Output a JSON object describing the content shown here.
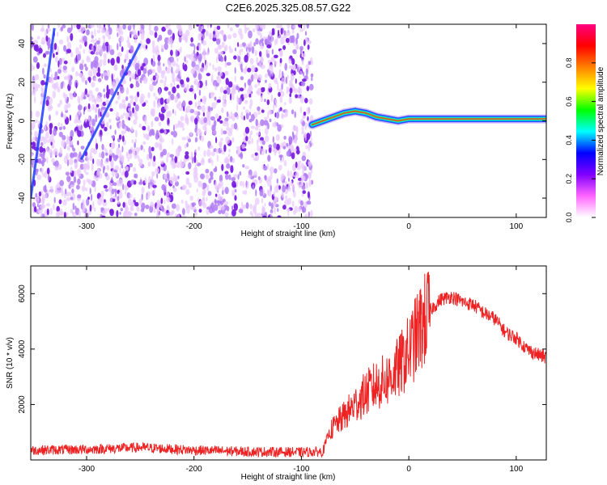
{
  "figure_title": "C2E6.2025.325.08.57.G22",
  "chart_data": [
    {
      "type": "heatmap",
      "title": "C2E6.2025.325.08.57.G22",
      "xlabel": "Height of straight line (km)",
      "ylabel": "Frequency (Hz)",
      "xlim": [
        -352,
        128
      ],
      "ylim": [
        -50,
        50
      ],
      "xticks": [
        -300,
        -200,
        -100,
        0,
        100
      ],
      "yticks": [
        -40,
        -20,
        0,
        20,
        40
      ],
      "colorbar": {
        "label": "Normalized spectral amplitude",
        "range": [
          0,
          1
        ],
        "ticks": [
          0.0,
          0.2,
          0.4,
          0.6,
          0.8
        ],
        "tick_labels": [
          "0.0",
          "0.2",
          "0.4",
          "0.6",
          "0.8"
        ],
        "colormap": [
          "#ffffff",
          "#ff66ff",
          "#8000ff",
          "#0000ff",
          "#00ffff",
          "#00ff00",
          "#ffff00",
          "#ff8000",
          "#ff0000",
          "#ff0080"
        ]
      },
      "noise_region": {
        "x_range": [
          -352,
          -90
        ],
        "y_range": [
          -50,
          50
        ]
      },
      "signal_trace": {
        "x": [
          -90,
          -80,
          -70,
          -60,
          -50,
          -40,
          -30,
          -20,
          -10,
          0,
          20,
          40,
          60,
          80,
          100,
          128
        ],
        "y": [
          -2,
          0,
          2,
          4,
          5,
          4,
          2,
          1,
          0,
          1,
          1,
          1,
          1,
          1,
          1,
          1
        ]
      },
      "diagonal_streaks": [
        {
          "x": [
            -352,
            -330
          ],
          "y": [
            -40,
            48
          ]
        },
        {
          "x": [
            -305,
            -250
          ],
          "y": [
            -20,
            40
          ]
        }
      ]
    },
    {
      "type": "line",
      "xlabel": "Height of straight line (km)",
      "ylabel": "SNR (10 * v/v)",
      "xlim": [
        -352,
        128
      ],
      "ylim": [
        0,
        7000
      ],
      "xticks": [
        -300,
        -200,
        -100,
        0,
        100
      ],
      "yticks": [
        2000,
        4000,
        6000
      ],
      "color": "#ee2222",
      "series": [
        {
          "name": "SNR",
          "x": [
            -352,
            -300,
            -250,
            -200,
            -150,
            -100,
            -80,
            -75,
            -70,
            -60,
            -50,
            -40,
            -30,
            -20,
            -10,
            0,
            10,
            20,
            30,
            40,
            50,
            60,
            70,
            80,
            90,
            100,
            110,
            120,
            128
          ],
          "y": [
            350,
            380,
            450,
            350,
            300,
            280,
            300,
            900,
            1200,
            1600,
            2000,
            2400,
            2700,
            2900,
            3300,
            3900,
            4700,
            5400,
            5800,
            5900,
            5700,
            5600,
            5300,
            5100,
            4600,
            4400,
            4000,
            3800,
            3700
          ]
        }
      ]
    }
  ]
}
